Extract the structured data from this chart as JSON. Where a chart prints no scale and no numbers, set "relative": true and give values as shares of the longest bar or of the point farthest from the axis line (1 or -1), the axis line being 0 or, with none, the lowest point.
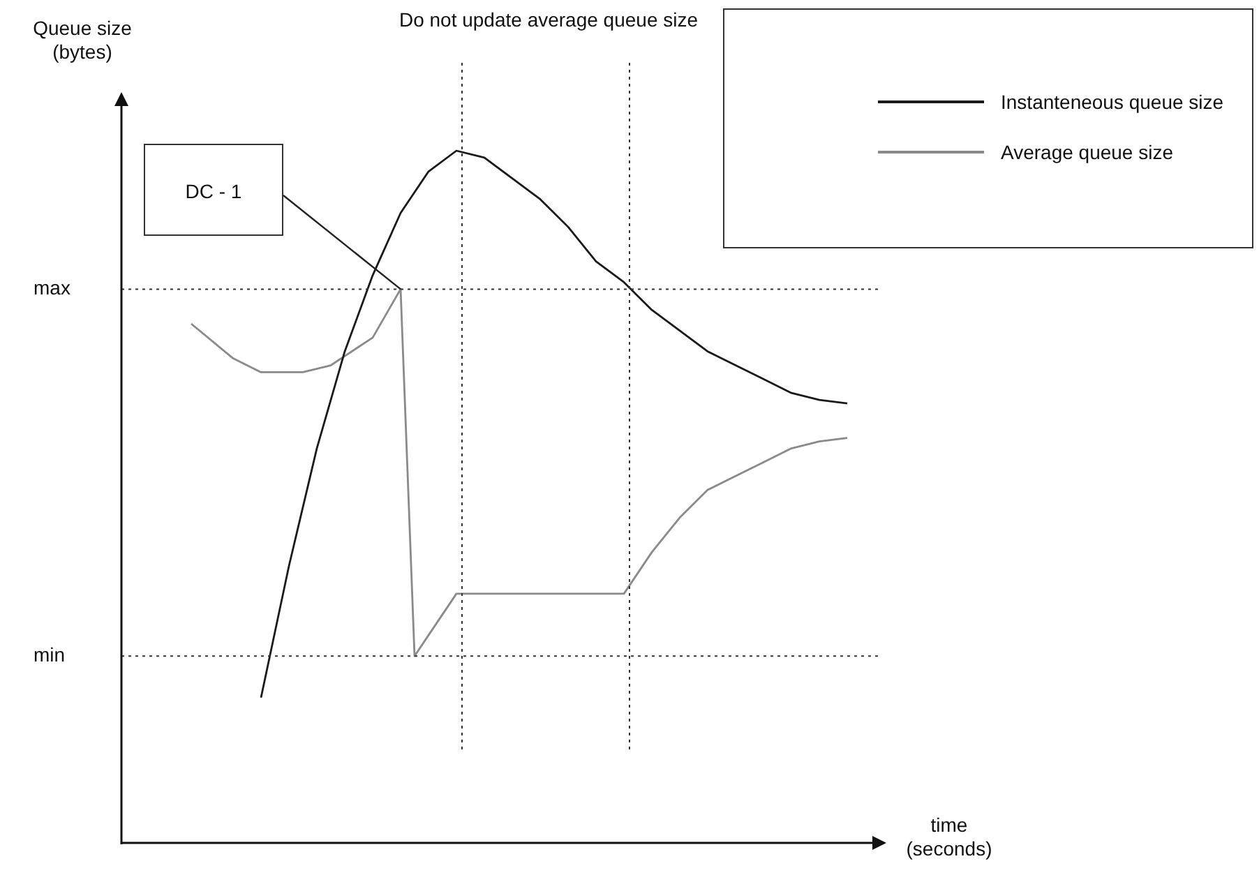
{
  "chart_data": {
    "type": "line",
    "relative": true,
    "xlabel": "time (seconds)",
    "ylabel": "Queue size (bytes)",
    "categories": [
      null,
      null,
      null,
      null,
      null,
      null,
      null,
      null,
      null,
      null,
      null,
      null,
      null,
      null,
      null,
      null,
      null,
      null,
      null,
      null,
      null,
      null,
      null,
      null,
      null,
      null,
      null,
      null,
      null,
      null,
      null,
      null,
      null,
      null,
      null,
      null,
      null,
      null,
      null,
      null,
      null,
      null,
      null,
      null,
      null,
      null,
      null,
      null,
      null,
      null,
      null,
      null,
      null,
      null,
      null
    ],
    "series": [
      {
        "name": "Instanteneous queue size",
        "color": "#1a1a1a",
        "values": [
          null,
          null,
          null,
          null,
          null,
          null,
          null,
          null,
          null,
          null,
          0.21,
          null,
          0.4,
          null,
          0.57,
          null,
          0.71,
          null,
          0.82,
          null,
          0.91,
          null,
          0.97,
          null,
          1.0,
          null,
          0.99,
          null,
          0.96,
          null,
          0.93,
          null,
          0.89,
          null,
          0.84,
          null,
          0.81,
          null,
          0.77,
          null,
          0.74,
          null,
          0.71,
          null,
          0.69,
          null,
          0.67,
          null,
          0.65,
          null,
          0.64,
          null,
          0.635,
          null,
          null
        ]
      },
      {
        "name": "Average queue size",
        "color": "#8a8a8a",
        "values": [
          null,
          null,
          null,
          null,
          null,
          0.75,
          null,
          null,
          0.7,
          null,
          0.68,
          null,
          null,
          0.68,
          null,
          0.69,
          null,
          null,
          0.73,
          null,
          0.8,
          0.27,
          0.3,
          0.33,
          0.36,
          null,
          null,
          null,
          null,
          null,
          null,
          null,
          null,
          null,
          null,
          null,
          0.36,
          null,
          0.42,
          null,
          0.47,
          null,
          0.51,
          null,
          0.53,
          null,
          0.55,
          null,
          0.57,
          null,
          0.58,
          null,
          0.585,
          null,
          null
        ]
      }
    ],
    "ref_lines": [
      {
        "axis": "y",
        "value": 0.8,
        "label": "max",
        "line_style": "dotted"
      },
      {
        "axis": "y",
        "value": 0.27,
        "label": "min",
        "line_style": "dotted"
      }
    ],
    "annotations": [
      "Do not update average queue size",
      "DC - 1"
    ],
    "legend": "top right",
    "marker": "none",
    "line_style": "solid",
    "grid": false,
    "tick_labels": false
  }
}
